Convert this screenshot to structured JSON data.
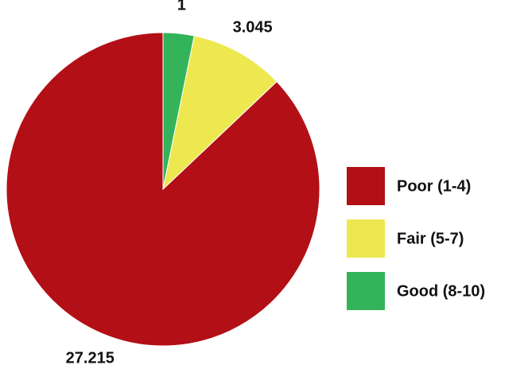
{
  "chart_data": {
    "type": "pie",
    "categories": [
      "Poor (1-4)",
      "Fair (5-7)",
      "Good (8-10)"
    ],
    "values": [
      27.215,
      3.045,
      1
    ],
    "colors": [
      "#b30f17",
      "#ede84f",
      "#33b45b"
    ],
    "legend": "right"
  }
}
